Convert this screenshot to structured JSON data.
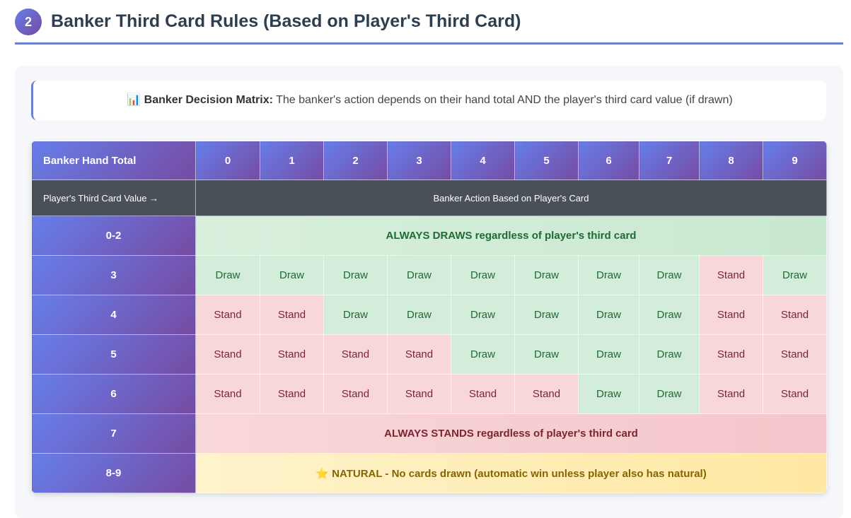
{
  "header": {
    "number": "2",
    "title": "Banker Third Card Rules (Based on Player's Third Card)"
  },
  "note": {
    "icon": "📊",
    "label": "Banker Decision Matrix:",
    "text": "The banker's action depends on their hand total AND the player's third card value (if drawn)"
  },
  "table": {
    "corner": "Banker Hand Total",
    "columns": [
      "0",
      "1",
      "2",
      "3",
      "4",
      "5",
      "6",
      "7",
      "8",
      "9"
    ],
    "subheader": {
      "left": "Player's Third Card Value →",
      "right": "Banker Action Based on Player's Card"
    },
    "action_styles": {
      "Draw": {
        "bg": "#d4edda",
        "color": "#1e6b34"
      },
      "Stand": {
        "bg": "#f8d7da",
        "color": "#7a2630"
      }
    },
    "rows": [
      {
        "label": "0-2",
        "span": "ALWAYS DRAWS regardless of player's third card",
        "bg": "linear-gradient(90deg,#d8efdc,#c9e8d0)",
        "color": "#1e6b34"
      },
      {
        "label": "3",
        "cells": [
          "Draw",
          "Draw",
          "Draw",
          "Draw",
          "Draw",
          "Draw",
          "Draw",
          "Draw",
          "Stand",
          "Draw"
        ]
      },
      {
        "label": "4",
        "cells": [
          "Stand",
          "Stand",
          "Draw",
          "Draw",
          "Draw",
          "Draw",
          "Draw",
          "Draw",
          "Stand",
          "Stand"
        ]
      },
      {
        "label": "5",
        "cells": [
          "Stand",
          "Stand",
          "Stand",
          "Stand",
          "Draw",
          "Draw",
          "Draw",
          "Draw",
          "Stand",
          "Stand"
        ]
      },
      {
        "label": "6",
        "cells": [
          "Stand",
          "Stand",
          "Stand",
          "Stand",
          "Stand",
          "Stand",
          "Draw",
          "Draw",
          "Stand",
          "Stand"
        ]
      },
      {
        "label": "7",
        "span": "ALWAYS STANDS regardless of player's third card",
        "bg": "linear-gradient(90deg,#f8d7da,#f5c6cb)",
        "color": "#7a2630"
      },
      {
        "label": "8-9",
        "icon": "⭐",
        "span": "NATURAL - No cards drawn (automatic win unless player also has natural)",
        "bg": "linear-gradient(90deg,#fff3cd,#ffe8a1)",
        "color": "#856404"
      }
    ]
  }
}
